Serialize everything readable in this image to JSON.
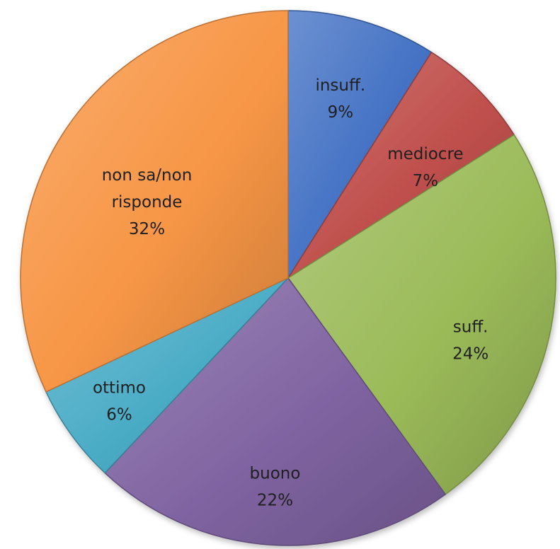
{
  "chart_data": {
    "type": "pie",
    "title": "",
    "legend": "none",
    "start_angle_deg": 0,
    "direction": "clockwise",
    "slices": [
      {
        "label_lines": [
          "insuff."
        ],
        "value": 9,
        "value_label": "9%",
        "color": "#4472C4"
      },
      {
        "label_lines": [
          "mediocre"
        ],
        "value": 7,
        "value_label": "7%",
        "color": "#C0504D"
      },
      {
        "label_lines": [
          "suff."
        ],
        "value": 24,
        "value_label": "24%",
        "color": "#9BBB59"
      },
      {
        "label_lines": [
          "buono"
        ],
        "value": 22,
        "value_label": "22%",
        "color": "#8064A2"
      },
      {
        "label_lines": [
          "ottimo"
        ],
        "value": 6,
        "value_label": "6%",
        "color": "#4BACC6"
      },
      {
        "label_lines": [
          "non sa/non",
          "risponde"
        ],
        "value": 32,
        "value_label": "32%",
        "color": "#F79646"
      }
    ]
  }
}
